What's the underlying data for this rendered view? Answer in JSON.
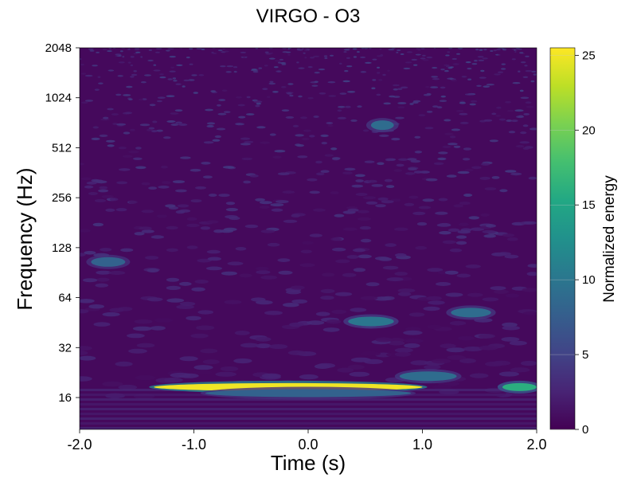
{
  "chart_data": {
    "type": "heatmap",
    "title": "VIRGO - O3",
    "xlabel": "Time (s)",
    "ylabel": "Frequency (Hz)",
    "xlim": [
      -2.0,
      2.0
    ],
    "ylim": [
      10,
      2048
    ],
    "y_scale": "log2",
    "x_ticks": [
      -2.0,
      -1.0,
      0.0,
      1.0,
      2.0
    ],
    "x_tick_labels": [
      "-2.0",
      "-1.0",
      "0.0",
      "1.0",
      "2.0"
    ],
    "y_ticks": [
      16,
      32,
      64,
      128,
      256,
      512,
      1024,
      2048
    ],
    "y_tick_labels": [
      "16",
      "32",
      "64",
      "128",
      "256",
      "512",
      "1024",
      "2048"
    ],
    "colorbar": {
      "label": "Normalized energy",
      "range": [
        0,
        25.5
      ],
      "ticks": [
        0,
        5,
        10,
        15,
        20,
        25
      ],
      "tick_labels": [
        "0",
        "5",
        "10",
        "15",
        "20",
        "25"
      ],
      "colormap": "viridis"
    },
    "features": [
      {
        "t_start": -1.35,
        "t_end": 1.0,
        "f_center": 18.5,
        "energy": 25,
        "kind": "band"
      },
      {
        "t_start": 1.7,
        "t_end": 2.0,
        "f_center": 18.5,
        "energy": 16,
        "kind": "band"
      },
      {
        "t_start": -0.9,
        "t_end": 0.9,
        "f_center": 17.0,
        "energy": 8,
        "kind": "band"
      },
      {
        "t_start": 0.8,
        "t_end": 1.3,
        "f_center": 21.5,
        "energy": 9,
        "kind": "blob"
      },
      {
        "t_start": 0.35,
        "t_end": 0.75,
        "f_center": 46,
        "energy": 10,
        "kind": "blob"
      },
      {
        "t_start": 1.25,
        "t_end": 1.6,
        "f_center": 52,
        "energy": 9,
        "kind": "blob"
      },
      {
        "t_start": -1.9,
        "t_end": -1.6,
        "f_center": 105,
        "energy": 8,
        "kind": "blob"
      },
      {
        "t_start": 0.55,
        "t_end": 0.75,
        "f_center": 700,
        "energy": 9,
        "kind": "blob"
      }
    ]
  }
}
